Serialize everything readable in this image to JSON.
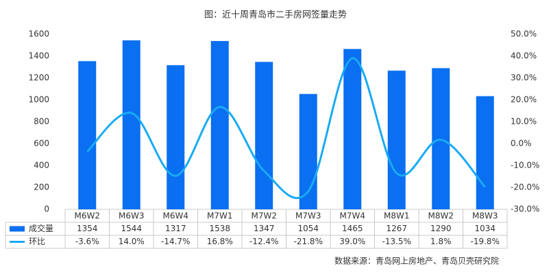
{
  "chart_data": {
    "type": "bar_line_table",
    "title": "图：近十周青岛市二手房网签量走势",
    "source": "数据来源：青岛网上房地产、青岛贝壳研究院",
    "categories": [
      "M6W2",
      "M6W3",
      "M6W4",
      "M7W1",
      "M7W2",
      "M7W3",
      "M7W4",
      "M8W1",
      "M8W2",
      "M8W3"
    ],
    "series": [
      {
        "name": "成交量",
        "color": "#0a6ff0",
        "type": "bar",
        "values": [
          1354,
          1544,
          1317,
          1538,
          1347,
          1054,
          1465,
          1267,
          1290,
          1034
        ]
      },
      {
        "name": "环比",
        "color": "#19aaf5",
        "type": "line",
        "axis": "y2",
        "values": [
          -3.6,
          14.0,
          -14.7,
          16.8,
          -12.4,
          -21.8,
          39.0,
          -13.5,
          1.8,
          -19.8
        ],
        "value_labels": [
          "-3.6%",
          "14.0%",
          "-14.7%",
          "16.8%",
          "-12.4%",
          "-21.8%",
          "39.0%",
          "-13.5%",
          "1.8%",
          "-19.8%"
        ]
      }
    ],
    "ylim": [
      0,
      1600
    ],
    "yticks": [
      0,
      200,
      400,
      600,
      800,
      1000,
      1200,
      1400,
      1600
    ],
    "y2lim": [
      -30,
      50
    ],
    "y2ticks": [
      {
        "value": -30,
        "label": "-30.0%"
      },
      {
        "value": -20,
        "label": "-20.0%"
      },
      {
        "value": -10,
        "label": "-10.0%"
      },
      {
        "value": 0,
        "label": "0.0%"
      },
      {
        "value": 10,
        "label": "10.0%"
      },
      {
        "value": 20,
        "label": "20.0%"
      },
      {
        "value": 30,
        "label": "30.0%"
      },
      {
        "value": 40,
        "label": "40.0%"
      },
      {
        "value": 50,
        "label": "50.0%"
      }
    ]
  }
}
